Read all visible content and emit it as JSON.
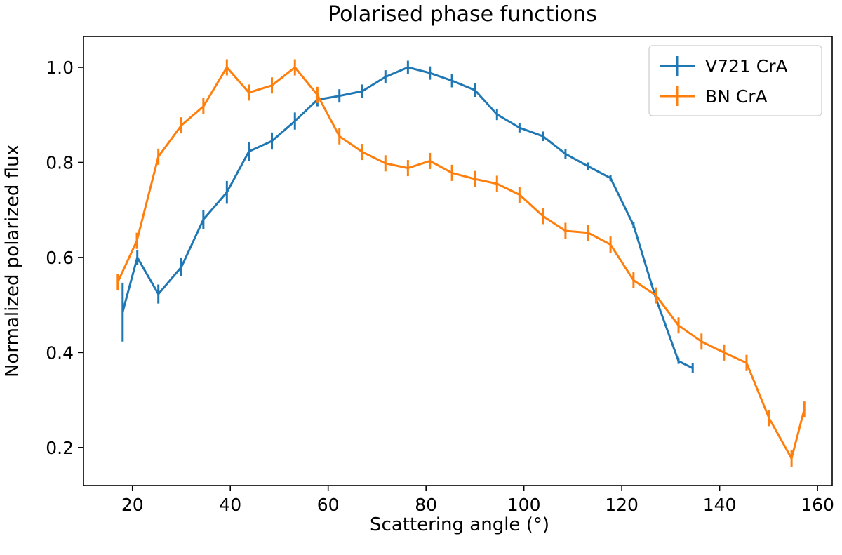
{
  "chart_data": {
    "type": "line",
    "title": "Polarised phase functions",
    "xlabel": "Scattering angle (°)",
    "ylabel": "Normalized polarized flux",
    "xlim": [
      10,
      163
    ],
    "ylim": [
      0.12,
      1.065
    ],
    "xticks": [
      20,
      40,
      60,
      80,
      100,
      120,
      140,
      160
    ],
    "yticks": [
      0.2,
      0.4,
      0.6,
      0.8,
      1.0
    ],
    "ytick_labels": [
      "0.2",
      "0.4",
      "0.6",
      "0.8",
      "1.0"
    ],
    "legend_position": "top-right",
    "series": [
      {
        "name": "V721 CrA",
        "color": "#1f77b4",
        "x": [
          18,
          21,
          25.3,
          30,
          34.5,
          39.3,
          43.8,
          48.5,
          53.2,
          57.8,
          62.3,
          67,
          71.7,
          76.3,
          80.8,
          85.3,
          90,
          94.5,
          99.1,
          103.9,
          108.5,
          113.1,
          117.7,
          122.4,
          127,
          131.6,
          134.5
        ],
        "y": [
          0.485,
          0.6,
          0.523,
          0.58,
          0.68,
          0.737,
          0.823,
          0.845,
          0.887,
          0.932,
          0.94,
          0.95,
          0.98,
          1.0,
          0.988,
          0.972,
          0.952,
          0.901,
          0.873,
          0.855,
          0.818,
          0.792,
          0.767,
          0.668,
          0.513,
          0.382,
          0.367
        ],
        "yerr": [
          0.062,
          0.016,
          0.02,
          0.02,
          0.02,
          0.024,
          0.02,
          0.018,
          0.018,
          0.014,
          0.014,
          0.014,
          0.014,
          0.014,
          0.014,
          0.014,
          0.014,
          0.012,
          0.01,
          0.01,
          0.01,
          0.008,
          0.006,
          0.006,
          0.006,
          0.006,
          0.01
        ]
      },
      {
        "name": "BN CrA",
        "color": "#ff7f0e",
        "x": [
          17,
          20.9,
          25.3,
          30,
          34.5,
          39.3,
          43.8,
          48.5,
          53.2,
          57.8,
          62.3,
          67,
          71.7,
          76.3,
          80.8,
          85.3,
          90,
          94.5,
          99.1,
          103.9,
          108.5,
          113.1,
          117.7,
          122.4,
          127,
          131.6,
          136.3,
          140.9,
          145.5,
          150.1,
          154.7,
          157.3
        ],
        "y": [
          0.548,
          0.635,
          0.812,
          0.878,
          0.918,
          1.0,
          0.947,
          0.962,
          1.0,
          0.942,
          0.855,
          0.822,
          0.798,
          0.788,
          0.803,
          0.778,
          0.765,
          0.755,
          0.732,
          0.687,
          0.656,
          0.652,
          0.627,
          0.552,
          0.52,
          0.457,
          0.423,
          0.4,
          0.378,
          0.262,
          0.177,
          0.28
        ]
      }
    ]
  }
}
